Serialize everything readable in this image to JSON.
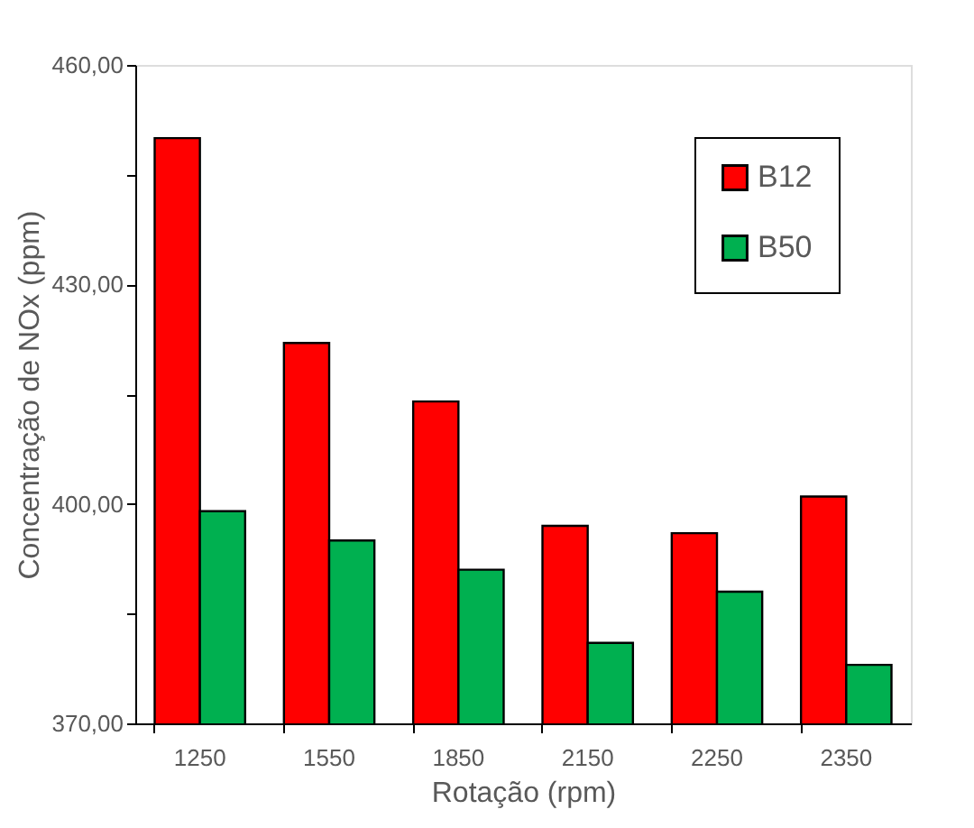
{
  "chart_data": {
    "type": "bar",
    "xlabel": "Rotação (rpm)",
    "ylabel": "Concentração de NOx (ppm)",
    "categories": [
      "1250",
      "1550",
      "1850",
      "2150",
      "2250",
      "2350"
    ],
    "series": [
      {
        "name": "B12",
        "color": "#ff0000",
        "values": [
          450,
          422,
          414,
          397,
          396,
          401
        ]
      },
      {
        "name": "B50",
        "color": "#00b050",
        "values": [
          399,
          395,
          391,
          381,
          388,
          378
        ]
      }
    ],
    "ylim": [
      370,
      460
    ],
    "yticks": [
      {
        "value": 370,
        "label": "370,00"
      },
      {
        "value": 385,
        "label": null
      },
      {
        "value": 400,
        "label": "400,00"
      },
      {
        "value": 415,
        "label": null
      },
      {
        "value": 430,
        "label": "430,00"
      },
      {
        "value": 445,
        "label": null
      },
      {
        "value": 460,
        "label": "460,00"
      }
    ],
    "grid": false,
    "legend": "top right"
  }
}
